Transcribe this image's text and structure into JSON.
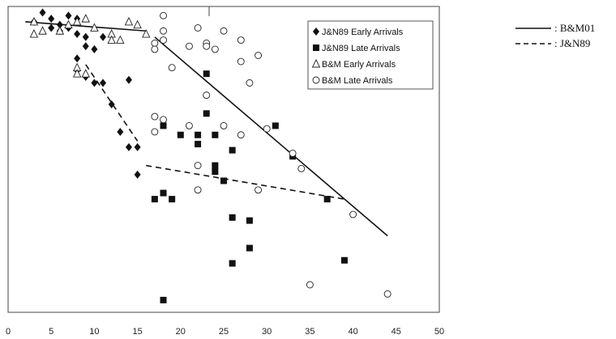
{
  "chart_data": {
    "type": "scatter",
    "title": "",
    "xlabel": "",
    "ylabel": "",
    "xlim": [
      0,
      50
    ],
    "ylim": [
      0,
      1
    ],
    "x_ticks": [
      0,
      5,
      10,
      15,
      20,
      25,
      30,
      35,
      40,
      45,
      50
    ],
    "x_tick_labels": [
      "0",
      "5",
      "10",
      "15",
      "20",
      "25",
      "30",
      "35",
      "40",
      "45",
      "50"
    ],
    "grid": false,
    "legend_position": "top-right",
    "series": [
      {
        "name": "J&N89 Early Arrivals",
        "marker": "filled-diamond",
        "points": [
          [
            3,
            0.95
          ],
          [
            4,
            0.98
          ],
          [
            5,
            0.96
          ],
          [
            5,
            0.93
          ],
          [
            6,
            0.94
          ],
          [
            6,
            0.92
          ],
          [
            7,
            0.97
          ],
          [
            7,
            0.93
          ],
          [
            8,
            0.96
          ],
          [
            8,
            0.91
          ],
          [
            9,
            0.9
          ],
          [
            9,
            0.87
          ],
          [
            10,
            0.86
          ],
          [
            11,
            0.9
          ],
          [
            8,
            0.83
          ],
          [
            8,
            0.79
          ],
          [
            10,
            0.75
          ],
          [
            9,
            0.77
          ],
          [
            11,
            0.75
          ],
          [
            12,
            0.68
          ],
          [
            14,
            0.76
          ],
          [
            13,
            0.59
          ],
          [
            14,
            0.54
          ],
          [
            15,
            0.54
          ],
          [
            15,
            0.45
          ]
        ]
      },
      {
        "name": "J&N89 Late Arrivals",
        "marker": "filled-square",
        "points": [
          [
            18,
            0.61
          ],
          [
            20,
            0.58
          ],
          [
            24,
            0.58
          ],
          [
            22,
            0.58
          ],
          [
            22,
            0.55
          ],
          [
            23,
            0.65
          ],
          [
            23,
            0.78
          ],
          [
            26,
            0.53
          ],
          [
            31,
            0.61
          ],
          [
            33,
            0.51
          ],
          [
            24,
            0.48
          ],
          [
            24,
            0.46
          ],
          [
            25,
            0.43
          ],
          [
            17,
            0.37
          ],
          [
            18,
            0.39
          ],
          [
            19,
            0.37
          ],
          [
            26,
            0.31
          ],
          [
            28,
            0.3
          ],
          [
            28,
            0.21
          ],
          [
            26,
            0.16
          ],
          [
            37,
            0.37
          ],
          [
            39,
            0.17
          ],
          [
            18,
            0.04
          ]
        ]
      },
      {
        "name": "B&M Early Arrivals",
        "marker": "open-triangle",
        "points": [
          [
            3,
            0.95
          ],
          [
            3,
            0.91
          ],
          [
            4,
            0.92
          ],
          [
            6,
            0.92
          ],
          [
            7,
            0.94
          ],
          [
            8,
            0.95
          ],
          [
            9,
            0.96
          ],
          [
            10,
            0.93
          ],
          [
            12,
            0.91
          ],
          [
            12,
            0.89
          ],
          [
            13,
            0.89
          ],
          [
            14,
            0.95
          ],
          [
            15,
            0.94
          ],
          [
            16,
            0.91
          ],
          [
            8,
            0.8
          ],
          [
            8,
            0.78
          ],
          [
            9,
            0.78
          ]
        ]
      },
      {
        "name": "B&M Late Arrivals",
        "marker": "open-circle",
        "points": [
          [
            18,
            0.97
          ],
          [
            18,
            0.92
          ],
          [
            18,
            0.89
          ],
          [
            17,
            0.88
          ],
          [
            17,
            0.86
          ],
          [
            19,
            0.8
          ],
          [
            21,
            0.87
          ],
          [
            22,
            0.93
          ],
          [
            23,
            0.88
          ],
          [
            23,
            0.87
          ],
          [
            24,
            0.86
          ],
          [
            25,
            0.92
          ],
          [
            27,
            0.89
          ],
          [
            27,
            0.82
          ],
          [
            29,
            0.84
          ],
          [
            28,
            0.75
          ],
          [
            23,
            0.71
          ],
          [
            17,
            0.64
          ],
          [
            18,
            0.63
          ],
          [
            17,
            0.59
          ],
          [
            21,
            0.61
          ],
          [
            25,
            0.61
          ],
          [
            27,
            0.58
          ],
          [
            30,
            0.6
          ],
          [
            33,
            0.52
          ],
          [
            34,
            0.47
          ],
          [
            22,
            0.48
          ],
          [
            22,
            0.4
          ],
          [
            29,
            0.4
          ],
          [
            40,
            0.32
          ],
          [
            35,
            0.09
          ],
          [
            44,
            0.06
          ]
        ]
      }
    ],
    "fit_lines": [
      {
        "name": "B&M01",
        "style": "solid",
        "segments": [
          {
            "x": [
              2,
              16
            ],
            "y": [
              0.95,
              0.92
            ]
          },
          {
            "x": [
              17,
              44
            ],
            "y": [
              0.9,
              0.25
            ]
          }
        ]
      },
      {
        "name": "J&N89",
        "style": "dashed",
        "segments": [
          {
            "x": [
              9,
              15
            ],
            "y": [
              0.81,
              0.56
            ]
          },
          {
            "x": [
              16,
              39
            ],
            "y": [
              0.48,
              0.37
            ]
          }
        ]
      }
    ],
    "legend_entries": [
      "J&N89 Early Arrivals",
      "J&N89 Late Arrivals",
      "B&M Early Arrivals",
      "B&M Late Arrivals"
    ],
    "side_legend": [
      {
        "label": ": B&M01",
        "style": "solid"
      },
      {
        "label": ": J&N89",
        "style": "dashed"
      }
    ]
  }
}
